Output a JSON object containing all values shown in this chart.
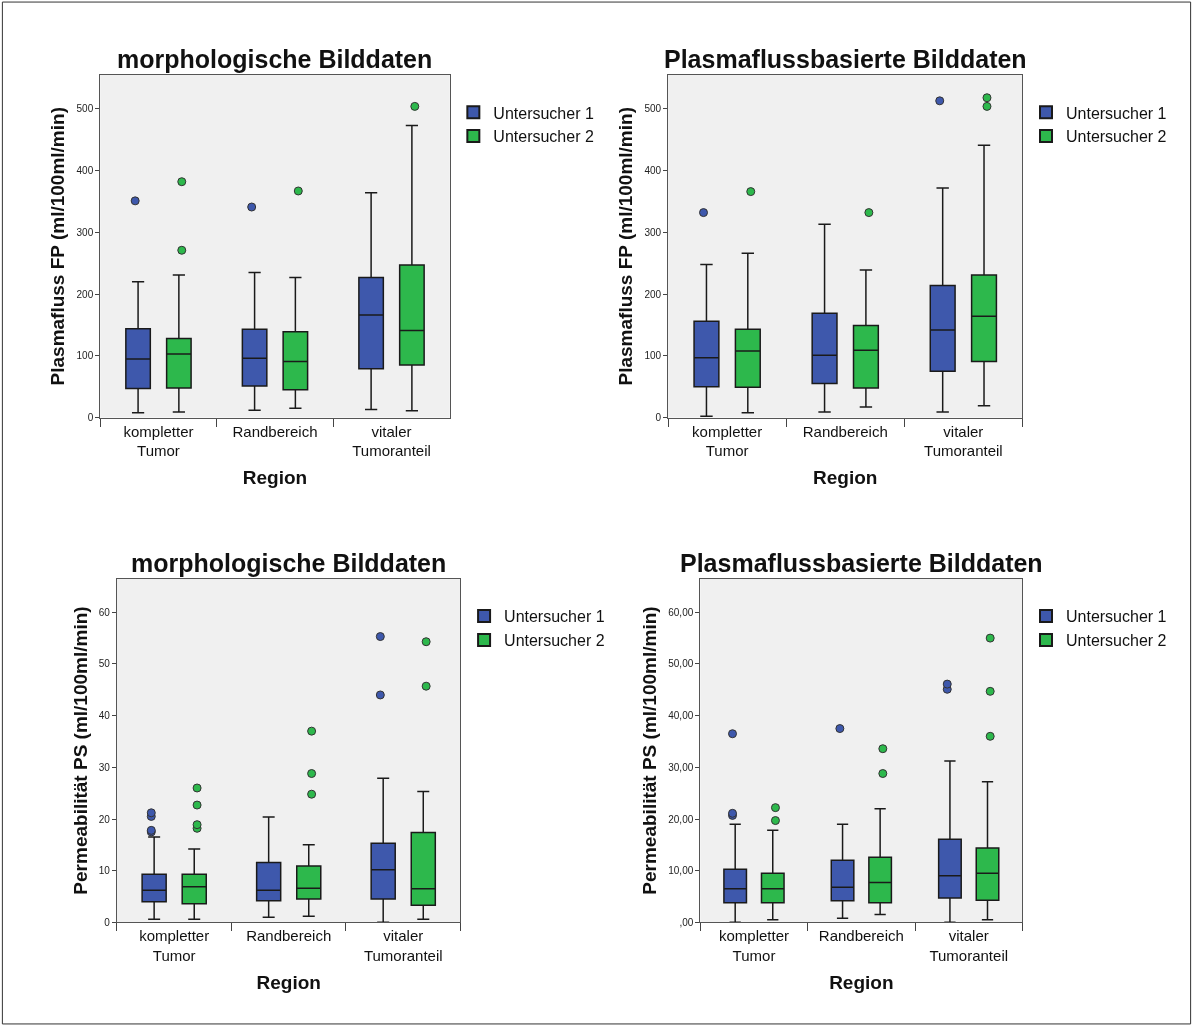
{
  "chart_data": [
    {
      "type": "box",
      "title": "morphologische Bilddaten",
      "xlabel": "Region",
      "ylabel": "Plasmafluss FP (ml/100ml/min)",
      "categories": [
        "kompletter\nTumor",
        "Randbereich",
        "vitaler\nTumoranteil"
      ],
      "ylim": [
        0,
        555
      ],
      "yticks": [
        0,
        100,
        200,
        300,
        400,
        500
      ],
      "legend": "top right",
      "series": [
        {
          "name": "Untersucher 1",
          "color": "#3e58ac",
          "boxes": [
            {
              "low": 8,
              "q1": 47,
              "median": 95,
              "q3": 144,
              "high": 220,
              "outliers": [
                351
              ]
            },
            {
              "low": 12,
              "q1": 51,
              "median": 96,
              "q3": 143,
              "high": 235,
              "outliers": [
                341
              ]
            },
            {
              "low": 13,
              "q1": 79,
              "median": 166,
              "q3": 227,
              "high": 364
            }
          ]
        },
        {
          "name": "Untersucher 2",
          "color": "#2db84c",
          "boxes": [
            {
              "low": 9,
              "q1": 48,
              "median": 103,
              "q3": 128,
              "high": 231,
              "outliers": [
                271,
                382
              ]
            },
            {
              "low": 15,
              "q1": 45,
              "median": 91,
              "q3": 139,
              "high": 227,
              "outliers": [
                367
              ]
            },
            {
              "low": 11,
              "q1": 85,
              "median": 141,
              "q3": 247,
              "high": 473,
              "outliers": [
                504
              ]
            }
          ]
        }
      ]
    },
    {
      "type": "box",
      "title": "Plasmaflussbasierte Bilddaten",
      "xlabel": "Region",
      "ylabel": "Plasmafluss FP (ml/100ml/min)",
      "categories": [
        "kompletter\nTumor",
        "Randbereich",
        "vitaler\nTumoranteil"
      ],
      "ylim": [
        0,
        555
      ],
      "yticks": [
        0,
        100,
        200,
        300,
        400,
        500
      ],
      "legend": "top right",
      "series": [
        {
          "name": "Untersucher 1",
          "color": "#3e58ac",
          "boxes": [
            {
              "low": 2,
              "q1": 50,
              "median": 97,
              "q3": 156,
              "high": 248,
              "outliers": [
                332
              ]
            },
            {
              "low": 9,
              "q1": 55,
              "median": 101,
              "q3": 169,
              "high": 313
            },
            {
              "low": 9,
              "q1": 75,
              "median": 142,
              "q3": 214,
              "high": 372,
              "outliers": [
                513
              ]
            }
          ]
        },
        {
          "name": "Untersucher 2",
          "color": "#2db84c",
          "boxes": [
            {
              "low": 8,
              "q1": 49,
              "median": 108,
              "q3": 143,
              "high": 266,
              "outliers": [
                366
              ]
            },
            {
              "low": 17,
              "q1": 48,
              "median": 109,
              "q3": 149,
              "high": 239,
              "outliers": [
                332
              ]
            },
            {
              "low": 19,
              "q1": 91,
              "median": 164,
              "q3": 231,
              "high": 441,
              "outliers": [
                504,
                518
              ]
            }
          ]
        }
      ]
    },
    {
      "type": "box",
      "title": "morphologische Bilddaten",
      "xlabel": "Region",
      "ylabel": "Permeabilität PS (ml/100ml/min)",
      "categories": [
        "kompletter\nTumor",
        "Randbereich",
        "vitaler\nTumoranteil"
      ],
      "ylim": [
        0,
        66.5
      ],
      "yticks": [
        0,
        10,
        20,
        30,
        40,
        50,
        60
      ],
      "legend": "top right",
      "series": [
        {
          "name": "Untersucher 1",
          "color": "#3e58ac",
          "boxes": [
            {
              "low": 0.6,
              "q1": 4.0,
              "median": 6.2,
              "q3": 9.3,
              "high": 16.5,
              "outliers": [
                17.5,
                17.8,
                20.5,
                21.2
              ]
            },
            {
              "low": 1.0,
              "q1": 4.2,
              "median": 6.2,
              "q3": 11.6,
              "high": 20.4
            },
            {
              "low": 0,
              "q1": 4.5,
              "median": 10.2,
              "q3": 15.3,
              "high": 27.9,
              "outliers": [
                44.0,
                55.3
              ]
            }
          ]
        },
        {
          "name": "Untersucher 2",
          "color": "#2db84c",
          "boxes": [
            {
              "low": 0.6,
              "q1": 3.6,
              "median": 6.9,
              "q3": 9.3,
              "high": 14.2,
              "outliers": [
                18.2,
                18.9,
                22.7,
                26.0
              ]
            },
            {
              "low": 1.2,
              "q1": 4.5,
              "median": 6.6,
              "q3": 10.9,
              "high": 15.0,
              "outliers": [
                24.8,
                28.8,
                37.0
              ]
            },
            {
              "low": 0.6,
              "q1": 3.3,
              "median": 6.5,
              "q3": 17.4,
              "high": 25.3,
              "outliers": [
                45.7,
                54.3
              ]
            }
          ]
        }
      ]
    },
    {
      "type": "box",
      "title": "Plasmaflussbasierte Bilddaten",
      "xlabel": "Region",
      "ylabel": "Permeabilität PS (ml/100ml/min)",
      "categories": [
        "kompletter\nTumor",
        "Randbereich",
        "vitaler\nTumoranteil"
      ],
      "ylim": [
        0,
        66.5
      ],
      "yticks": [
        {
          "value": 0,
          "label": ",00"
        },
        {
          "value": 10,
          "label": "10,00"
        },
        {
          "value": 20,
          "label": "20,00"
        },
        {
          "value": 30,
          "label": "30,00"
        },
        {
          "value": 40,
          "label": "40,00"
        },
        {
          "value": 50,
          "label": "50,00"
        },
        {
          "value": 60,
          "label": "60,00"
        }
      ],
      "legend": "top right",
      "series": [
        {
          "name": "Untersucher 1",
          "color": "#3e58ac",
          "boxes": [
            {
              "low": 0,
              "q1": 3.8,
              "median": 6.5,
              "q3": 10.3,
              "high": 19.0,
              "outliers": [
                20.7,
                21.1,
                36.5
              ]
            },
            {
              "low": 0.8,
              "q1": 4.2,
              "median": 6.8,
              "q3": 12.0,
              "high": 19.0,
              "outliers": [
                37.5
              ]
            },
            {
              "low": 0,
              "q1": 4.7,
              "median": 9.0,
              "q3": 16.1,
              "high": 31.2,
              "outliers": [
                45.1,
                46.1
              ]
            }
          ]
        },
        {
          "name": "Untersucher 2",
          "color": "#2db84c",
          "boxes": [
            {
              "low": 0.5,
              "q1": 3.8,
              "median": 6.5,
              "q3": 9.5,
              "high": 17.8,
              "outliers": [
                19.7,
                22.2
              ]
            },
            {
              "low": 1.5,
              "q1": 3.8,
              "median": 7.7,
              "q3": 12.6,
              "high": 22.0,
              "outliers": [
                28.8,
                33.6
              ]
            },
            {
              "low": 0.5,
              "q1": 4.3,
              "median": 9.5,
              "q3": 14.4,
              "high": 27.2,
              "outliers": [
                36.0,
                44.7,
                55.0
              ]
            }
          ]
        }
      ]
    }
  ]
}
